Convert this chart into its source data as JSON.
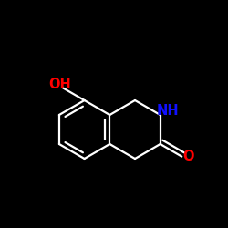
{
  "background_color": "#000000",
  "bond_color": "#ffffff",
  "bond_width": 1.6,
  "N_color": "#1010ff",
  "O_color": "#ff0000",
  "OH_label": "OH",
  "NH_label": "NH",
  "O_label": "O",
  "font_size": 10.5,
  "figsize": [
    2.5,
    2.5
  ],
  "dpi": 100
}
